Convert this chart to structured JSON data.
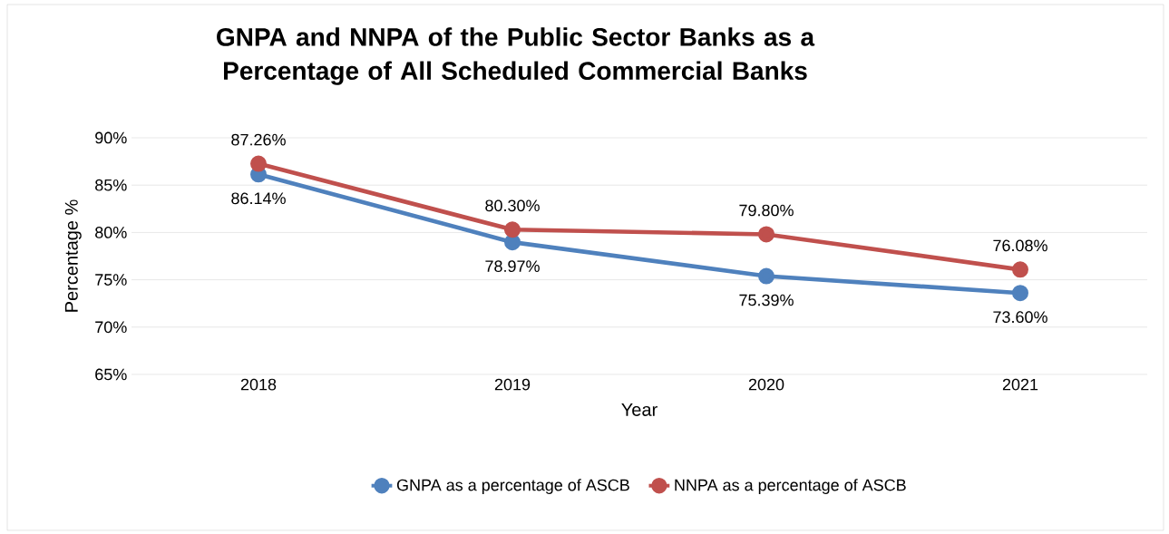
{
  "chart_data": {
    "type": "line",
    "title": "GNPA and NNPA of the Public Sector Banks as a Percentage of All Scheduled Commercial Banks",
    "xlabel": "Year",
    "ylabel": "Percentage %",
    "categories": [
      "2018",
      "2019",
      "2020",
      "2021"
    ],
    "series": [
      {
        "name": "GNPA as a percentage of ASCB",
        "color": "#4f81bd",
        "values": [
          86.14,
          78.97,
          75.39,
          73.6
        ],
        "value_labels": [
          "86.14%",
          "78.97%",
          "75.39%",
          "73.60%"
        ]
      },
      {
        "name": "NNPA as a percentage of ASCB",
        "color": "#c0504d",
        "values": [
          87.26,
          80.3,
          79.8,
          76.08
        ],
        "value_labels": [
          "87.26%",
          "80.30%",
          "79.80%",
          "76.08%"
        ]
      }
    ],
    "ylim": [
      65,
      90
    ],
    "yticks": [
      {
        "value": 65,
        "label": "65%"
      },
      {
        "value": 70,
        "label": "70%"
      },
      {
        "value": 75,
        "label": "75%"
      },
      {
        "value": 80,
        "label": "80%"
      },
      {
        "value": 85,
        "label": "85%"
      },
      {
        "value": 90,
        "label": "90%"
      }
    ],
    "grid": "y",
    "legend": "bottom",
    "marker": "circle",
    "line_style": "solid"
  }
}
